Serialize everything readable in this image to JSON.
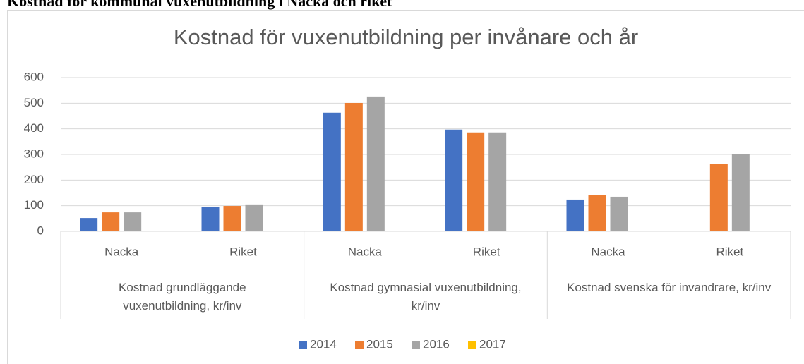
{
  "header": {
    "title": "Kostnad för kommunal vuxenutbildning i Nacka och riket"
  },
  "chart_data": {
    "type": "bar",
    "title": "Kostnad för vuxenutbildning per invånare och år",
    "categories": [
      "Nacka",
      "Riket",
      "Nacka",
      "Riket",
      "Nacka",
      "Riket"
    ],
    "groups": [
      "Kostnad grundläggande vuxenutbildning, kr/inv",
      "Kostnad gymnasial vuxenutbildning, kr/inv",
      "Kostnad svenska för invandrare, kr/inv"
    ],
    "series": [
      {
        "name": "2014",
        "color": "#4472c4",
        "values": [
          52,
          94,
          463,
          397,
          124,
          null
        ]
      },
      {
        "name": "2015",
        "color": "#ed7d31",
        "values": [
          74,
          99,
          501,
          386,
          143,
          264
        ]
      },
      {
        "name": "2016",
        "color": "#a5a5a5",
        "values": [
          74,
          105,
          526,
          386,
          135,
          300
        ]
      },
      {
        "name": "2017",
        "color": "#ffc000",
        "values": [
          null,
          null,
          null,
          null,
          null,
          null
        ]
      }
    ],
    "ylim": [
      0,
      600
    ],
    "yticks": [
      0,
      100,
      200,
      300,
      400,
      500,
      600
    ],
    "grid": true,
    "legend": "bottom"
  }
}
